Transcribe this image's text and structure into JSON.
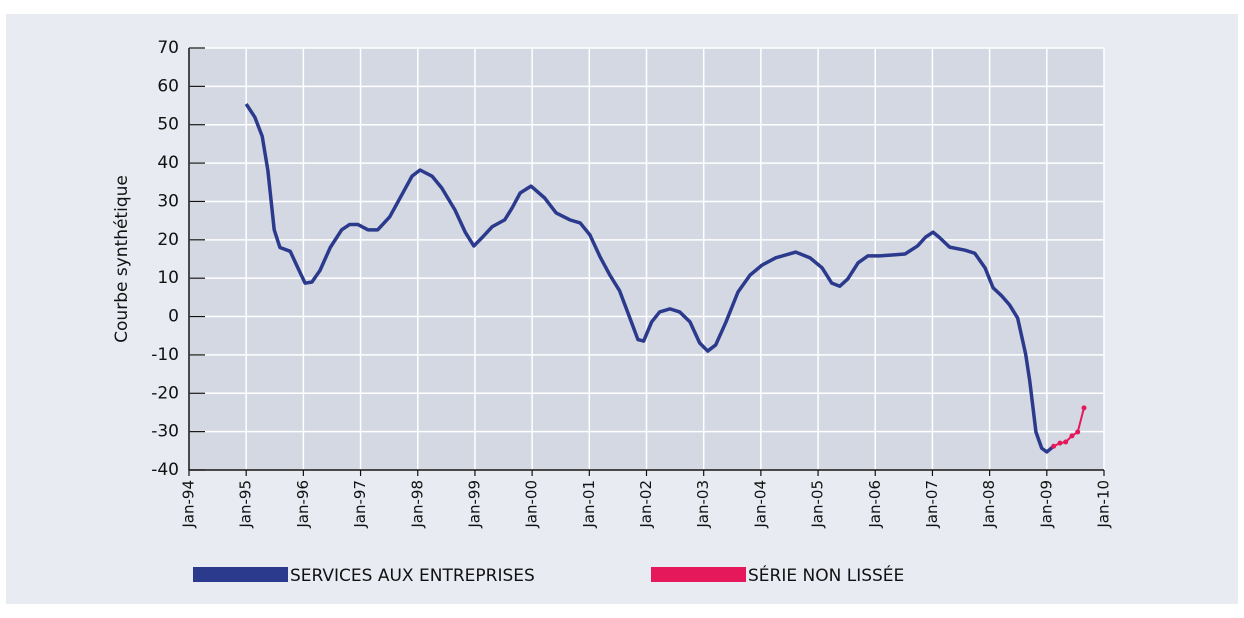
{
  "chart_data": {
    "type": "line",
    "ylabel": "Courbe synthétique",
    "xlim": [
      1994,
      2010
    ],
    "xticks": [
      {
        "value": 1994,
        "label": "Jan-94"
      },
      {
        "value": 1995,
        "label": "Jan-95"
      },
      {
        "value": 1996,
        "label": "Jan-96"
      },
      {
        "value": 1997,
        "label": "Jan-97"
      },
      {
        "value": 1998,
        "label": "Jan-98"
      },
      {
        "value": 1999,
        "label": "Jan-99"
      },
      {
        "value": 2000,
        "label": "Jan-00"
      },
      {
        "value": 2001,
        "label": "Jan-01"
      },
      {
        "value": 2002,
        "label": "Jan-02"
      },
      {
        "value": 2003,
        "label": "Jan-03"
      },
      {
        "value": 2004,
        "label": "Jan-04"
      },
      {
        "value": 2005,
        "label": "Jan-05"
      },
      {
        "value": 2006,
        "label": "Jan-06"
      },
      {
        "value": 2007,
        "label": "Jan-07"
      },
      {
        "value": 2008,
        "label": "Jan-08"
      },
      {
        "value": 2009,
        "label": "Jan-09"
      },
      {
        "value": 2010,
        "label": "Jan-10"
      }
    ],
    "ylim": [
      -40,
      70
    ],
    "yticks": [
      -40,
      -30,
      -20,
      -10,
      0,
      10,
      20,
      30,
      40,
      50,
      60,
      70
    ],
    "grid": true,
    "legend": "bottom",
    "series": [
      {
        "name": "SERVICES AUX ENTREPRISES",
        "color": "#2b3a8c",
        "x": [
          1995.0,
          1995.15,
          1995.28,
          1995.38,
          1995.49,
          1995.59,
          1995.77,
          1995.91,
          1996.03,
          1996.15,
          1996.29,
          1996.47,
          1996.67,
          1996.81,
          1996.95,
          1997.13,
          1997.3,
          1997.51,
          1997.72,
          1997.9,
          1998.04,
          1998.25,
          1998.42,
          1998.65,
          1998.83,
          1998.98,
          1999.12,
          1999.3,
          1999.52,
          1999.65,
          1999.79,
          1999.98,
          2000.22,
          2000.42,
          2000.66,
          2000.84,
          2001.01,
          2001.19,
          2001.36,
          2001.53,
          2001.71,
          2001.85,
          2001.95,
          2002.09,
          2002.23,
          2002.41,
          2002.58,
          2002.76,
          2002.93,
          2003.07,
          2003.21,
          2003.39,
          2003.6,
          2003.81,
          2004.02,
          2004.26,
          2004.61,
          2004.86,
          2005.07,
          2005.24,
          2005.38,
          2005.52,
          2005.7,
          2005.87,
          2006.08,
          2006.52,
          2006.74,
          2006.88,
          2007.01,
          2007.13,
          2007.3,
          2007.57,
          2007.74,
          2007.92,
          2008.06,
          2008.21,
          2008.35,
          2008.49,
          2008.63,
          2008.7,
          2008.81,
          2008.91,
          2009.0,
          2009.12
        ],
        "values": [
          55.4,
          52,
          47,
          38,
          22.6,
          18,
          17,
          12.5,
          8.7,
          9,
          12,
          18,
          22.6,
          24,
          24,
          22.6,
          22.6,
          26,
          31.7,
          36.6,
          38.2,
          36.6,
          33.5,
          27.8,
          22,
          18.4,
          20.5,
          23.4,
          25.2,
          28.3,
          32.2,
          34,
          30.9,
          27,
          25.2,
          24.4,
          21.3,
          15.5,
          10.8,
          6.7,
          -0.4,
          -6,
          -6.4,
          -1.4,
          1.2,
          2,
          1.2,
          -1.4,
          -6.9,
          -9,
          -7.4,
          -1.4,
          6.4,
          10.8,
          13.4,
          15.3,
          16.8,
          15.3,
          12.7,
          8.7,
          7.9,
          9.8,
          14,
          15.8,
          15.8,
          16.3,
          18.4,
          20.7,
          22,
          20.5,
          18.1,
          17.3,
          16.5,
          12.7,
          7.5,
          5.4,
          3,
          -0.4,
          -9.8,
          -16.6,
          -30.1,
          -34.3,
          -35.3,
          -33.8
        ]
      },
      {
        "name": "SÉRIE NON LISSÉE",
        "color": "#e5185b",
        "x": [
          2009.12,
          2009.23,
          2009.33,
          2009.44,
          2009.54,
          2009.65
        ],
        "values": [
          -33.8,
          -33,
          -32.7,
          -31.1,
          -30.1,
          -23.8
        ]
      }
    ]
  }
}
